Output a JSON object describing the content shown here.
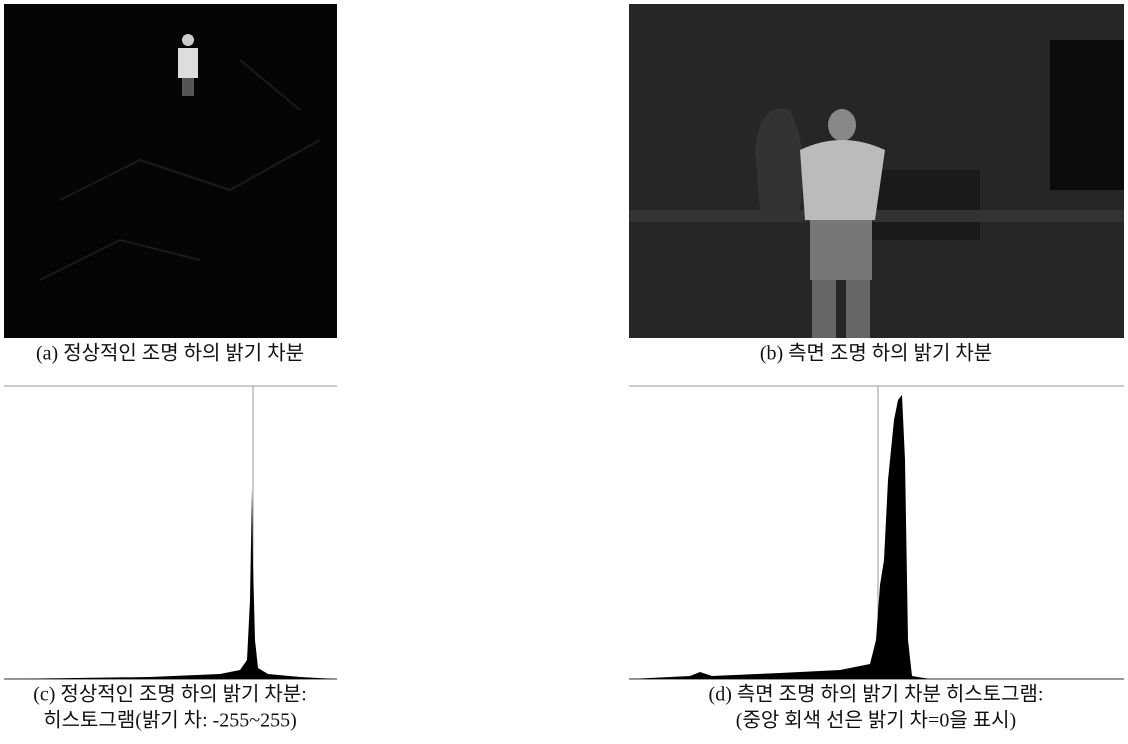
{
  "figures": [
    {
      "caption": [
        "(a) 정상적인 조명 하의 밝기 차분"
      ]
    },
    {
      "caption": [
        "(b) 측면 조명 하의 밝기 차분"
      ]
    },
    {
      "caption": [
        "(c) 정상적인 조명 하의 밝기 차분:",
        "히스토그램(밝기 차: -255~255)"
      ]
    },
    {
      "caption": [
        "(d) 측면 조명 하의 밝기 차분 히스토그램:",
        "(중앙 회색 선은 밝기 차=0을 표시)"
      ]
    }
  ]
}
